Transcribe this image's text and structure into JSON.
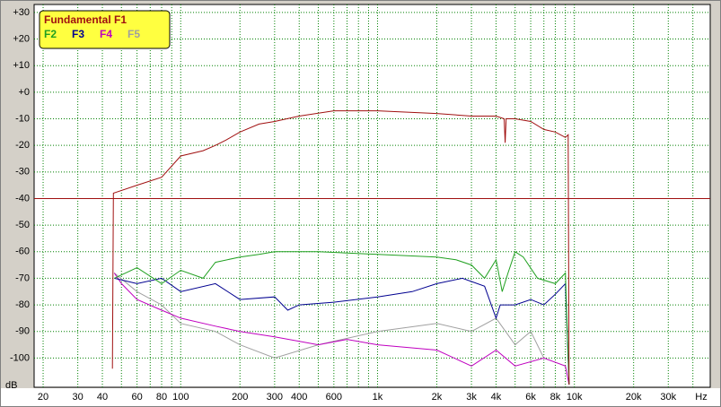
{
  "chart_data": {
    "type": "line",
    "xlabel": "Hz",
    "ylabel": "dB",
    "xlog": true,
    "xlim": [
      18,
      49000
    ],
    "ylim": [
      -111,
      33
    ],
    "xticks": [
      20,
      30,
      40,
      60,
      80,
      100,
      200,
      300,
      400,
      600,
      {
        "value": 1000,
        "label": "1k"
      },
      {
        "value": 2000,
        "label": "2k"
      },
      {
        "value": 3000,
        "label": "3k"
      },
      {
        "value": 4000,
        "label": "4k"
      },
      {
        "value": 6000,
        "label": "6k"
      },
      {
        "value": 8000,
        "label": "8k"
      },
      {
        "value": 10000,
        "label": "10k"
      },
      {
        "value": 20000,
        "label": "20k"
      },
      {
        "value": 30000,
        "label": "30k"
      }
    ],
    "xminorticks": [
      50,
      70,
      90,
      500,
      700,
      800,
      900,
      5000,
      7000,
      9000,
      40000
    ],
    "yticks": [
      {
        "value": 30,
        "label": "+30"
      },
      {
        "value": 20,
        "label": "+20"
      },
      {
        "value": 10,
        "label": "+10"
      },
      {
        "value": 0,
        "label": "+0"
      },
      -10,
      -20,
      -30,
      -40,
      -50,
      -60,
      -70,
      -80,
      -90,
      -100
    ],
    "grid": true,
    "reference_line": {
      "value": -40,
      "color": "#a01010"
    },
    "series": [
      {
        "name": "Fundamental F1",
        "color": "#a01010",
        "x": [
          45,
          45.5,
          60,
          80,
          100,
          130,
          150,
          170,
          200,
          250,
          300,
          400,
          600,
          1000,
          2000,
          3000,
          4000,
          4400,
          4450,
          4500,
          5000,
          6000,
          7000,
          8000,
          9000,
          9300,
          9400
        ],
        "values": [
          -104,
          -38,
          -35,
          -32,
          -24,
          -22,
          -20,
          -18,
          -15,
          -12,
          -11,
          -9,
          -7,
          -7,
          -8,
          -9,
          -9,
          -10,
          -19,
          -10,
          -10,
          -11,
          -14,
          -15,
          -17,
          -16,
          -110
        ]
      },
      {
        "name": "F2",
        "color": "#20a020",
        "x": [
          46,
          60,
          80,
          100,
          130,
          150,
          200,
          250,
          300,
          500,
          1000,
          2000,
          2500,
          3000,
          3500,
          4000,
          4300,
          4600,
          5000,
          5500,
          6500,
          8000,
          9000,
          9400
        ],
        "values": [
          -70,
          -66,
          -72,
          -67,
          -70,
          -64,
          -62,
          -61,
          -60,
          -60,
          -61,
          -62,
          -63,
          -65,
          -70,
          -63,
          -75,
          -68,
          -60,
          -62,
          -70,
          -72,
          -68,
          -110
        ]
      },
      {
        "name": "F3",
        "color": "#000090",
        "x": [
          46,
          60,
          80,
          100,
          150,
          200,
          300,
          350,
          400,
          600,
          1000,
          1500,
          2000,
          2700,
          3500,
          4000,
          4200,
          5000,
          6000,
          7000,
          8000,
          9000,
          9400
        ],
        "values": [
          -70,
          -72,
          -70,
          -75,
          -72,
          -78,
          -77,
          -82,
          -80,
          -79,
          -77,
          -75,
          -72,
          -70,
          -73,
          -85,
          -80,
          -80,
          -78,
          -80,
          -76,
          -72,
          -110
        ]
      },
      {
        "name": "F4",
        "color": "#c000c0",
        "x": [
          46,
          50,
          60,
          80,
          100,
          150,
          200,
          300,
          500,
          700,
          1000,
          2000,
          3000,
          4000,
          5000,
          7000,
          9000,
          9400
        ],
        "values": [
          -68,
          -72,
          -78,
          -82,
          -85,
          -88,
          -90,
          -92,
          -95,
          -93,
          -95,
          -97,
          -103,
          -97,
          -103,
          -100,
          -103,
          -110
        ]
      },
      {
        "name": "F5",
        "color": "#a0a0a0",
        "x": [
          46,
          60,
          80,
          100,
          150,
          200,
          300,
          500,
          1000,
          2000,
          3000,
          4000,
          5000,
          6000,
          7000
        ],
        "values": [
          -68,
          -75,
          -80,
          -87,
          -90,
          -95,
          -100,
          -95,
          -90,
          -87,
          -90,
          -85,
          -95,
          -90,
          -100
        ]
      }
    ]
  }
}
